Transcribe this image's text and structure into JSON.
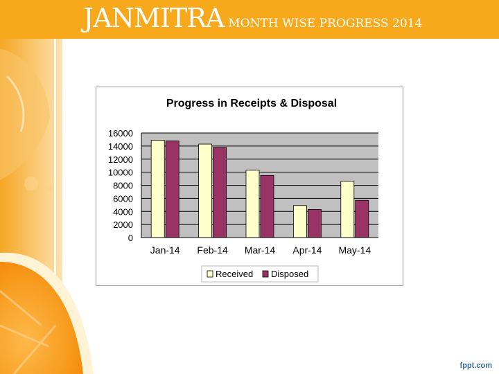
{
  "slide": {
    "title_main": "JANMITRA",
    "title_sub": "MONTH WISE PROGRESS 2014",
    "footer_brand": "fppt.com"
  },
  "colors": {
    "title_bar": "#f7a81b",
    "received": "#ffffcc",
    "disposed": "#993366",
    "plot_area": "#c0c0c0"
  },
  "chart_data": {
    "type": "bar",
    "title": "Progress in Receipts & Disposal",
    "categories": [
      "Jan-14",
      "Feb-14",
      "Mar-14",
      "Apr-14",
      "May-14"
    ],
    "series": [
      {
        "name": "Received",
        "values": [
          14900,
          14300,
          10300,
          4900,
          8600
        ]
      },
      {
        "name": "Disposed",
        "values": [
          14800,
          13800,
          9500,
          4300,
          5700
        ]
      }
    ],
    "yticks": [
      "0",
      "2000",
      "4000",
      "6000",
      "8000",
      "10000",
      "12000",
      "14000",
      "16000"
    ],
    "ylim": [
      0,
      16000
    ],
    "grid": true,
    "legend_position": "bottom"
  }
}
